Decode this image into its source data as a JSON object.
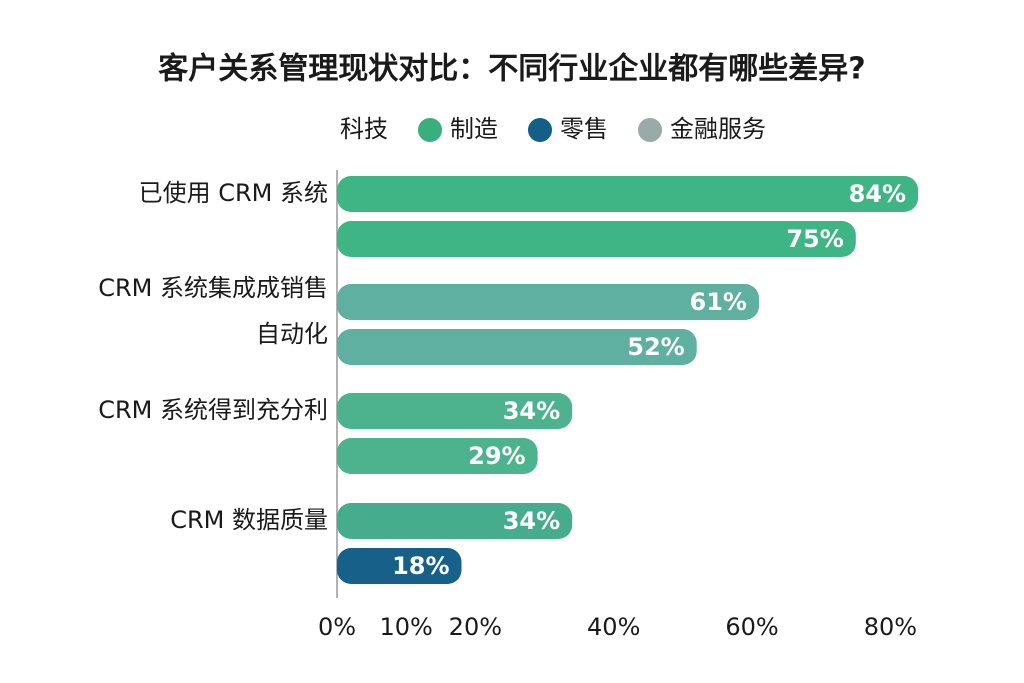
{
  "chart_data": {
    "type": "bar",
    "orientation": "horizontal",
    "title": "客户关系管理现状对比：不同行业企业都有哪些差异?",
    "legend": [
      {
        "name": "科技",
        "color": null
      },
      {
        "name": "制造",
        "color": "#3aae7c"
      },
      {
        "name": "零售",
        "color": "#155e85"
      },
      {
        "name": "金融服务",
        "color": "#9aaaa6"
      }
    ],
    "categories": [
      [
        "已使用 CRM 系统"
      ],
      [
        "CRM 系统集成成销售",
        "自动化"
      ],
      [
        "CRM 系统得到充分利"
      ],
      [
        "CRM 数据质量"
      ]
    ],
    "values": [
      [
        84,
        75
      ],
      [
        61,
        52
      ],
      [
        34,
        29
      ],
      [
        34,
        18
      ]
    ],
    "value_labels": [
      [
        "84%",
        "75%"
      ],
      [
        "61%",
        "52%"
      ],
      [
        "34%",
        "29%"
      ],
      [
        "34%",
        "18%"
      ]
    ],
    "colors": [
      [
        "#3fb585",
        "#3fb585"
      ],
      [
        "#5fb0a0",
        "#5fb0a0"
      ],
      [
        "#4db38f",
        "#4db38f"
      ],
      [
        "#45ad8c",
        "#17608a"
      ]
    ],
    "xlim": [
      0,
      85
    ],
    "xticks": [
      {
        "value": 0,
        "label": "0%"
      },
      {
        "value": 10,
        "label": "10%"
      },
      {
        "value": 20,
        "label": "20%"
      },
      {
        "value": 40,
        "label": "40%"
      },
      {
        "value": 60,
        "label": "60%"
      },
      {
        "value": 80,
        "label": "80%"
      }
    ]
  }
}
